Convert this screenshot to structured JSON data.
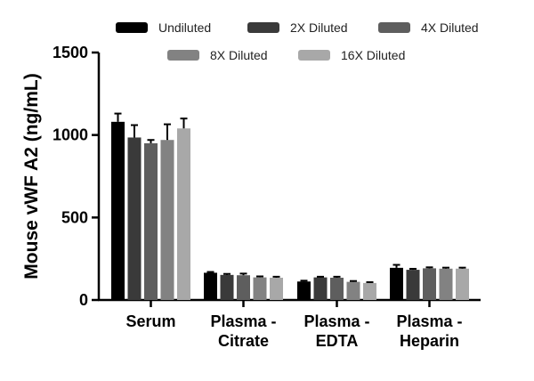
{
  "chart_data": {
    "type": "bar",
    "title": "",
    "xlabel": "",
    "ylabel": "Mouse vWF A2 (ng/mL)",
    "ylim": [
      0,
      1500
    ],
    "yticks": [
      0,
      500,
      1000,
      1500
    ],
    "grid": false,
    "legend_position": "top",
    "categories": [
      [
        "Serum"
      ],
      [
        "Plasma -",
        "Citrate"
      ],
      [
        "Plasma -",
        "EDTA"
      ],
      [
        "Plasma -",
        "Heparin"
      ]
    ],
    "series": [
      {
        "name": "Undiluted",
        "color": "#000000",
        "values": [
          1080,
          165,
          112,
          195
        ],
        "errors": [
          50,
          5,
          5,
          18
        ]
      },
      {
        "name": "2X Diluted",
        "color": "#3a3a3a",
        "values": [
          985,
          152,
          137,
          183
        ],
        "errors": [
          75,
          6,
          4,
          6
        ]
      },
      {
        "name": "4X Diluted",
        "color": "#5e5e5e",
        "values": [
          950,
          150,
          135,
          192
        ],
        "errors": [
          20,
          10,
          6,
          6
        ]
      },
      {
        "name": "8X Diluted",
        "color": "#828282",
        "values": [
          970,
          137,
          110,
          190
        ],
        "errors": [
          95,
          6,
          5,
          6
        ]
      },
      {
        "name": "16X Diluted",
        "color": "#a8a8a8",
        "values": [
          1040,
          135,
          103,
          190
        ],
        "errors": [
          60,
          6,
          5,
          6
        ]
      }
    ]
  }
}
